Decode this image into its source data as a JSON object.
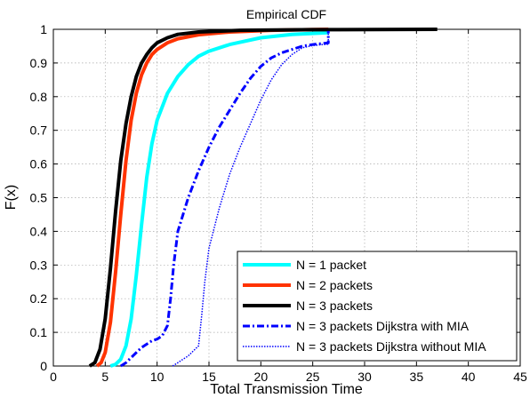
{
  "chart_data": {
    "type": "line",
    "title": "Empirical CDF",
    "xlabel": "Total Transmission Time",
    "ylabel": "F(x)",
    "xlim": [
      0,
      45
    ],
    "ylim": [
      0,
      1
    ],
    "xticks": [
      0,
      5,
      10,
      15,
      20,
      25,
      30,
      35,
      40,
      45
    ],
    "yticks": [
      0,
      0.1,
      0.2,
      0.3,
      0.4,
      0.5,
      0.6,
      0.7,
      0.8,
      0.9,
      1
    ],
    "grid": true,
    "legend_position": "bottom-right",
    "series": [
      {
        "name": "N = 1 packet",
        "color": "#00ffff",
        "style": "solid",
        "x": [
          5.5,
          6.0,
          6.5,
          7.0,
          7.5,
          8.0,
          8.5,
          9.0,
          9.5,
          10.0,
          11.0,
          12.0,
          13.0,
          14.0,
          15.0,
          17.0,
          20.0,
          23.0,
          26.5
        ],
        "y": [
          0,
          0.005,
          0.02,
          0.06,
          0.14,
          0.27,
          0.42,
          0.56,
          0.66,
          0.73,
          0.81,
          0.86,
          0.895,
          0.92,
          0.935,
          0.955,
          0.975,
          0.985,
          0.99
        ]
      },
      {
        "name": "N = 2 packets",
        "color": "#ff3300",
        "style": "solid",
        "x": [
          4.2,
          4.6,
          5.0,
          5.5,
          6.0,
          6.5,
          7.0,
          7.5,
          8.0,
          8.5,
          9.0,
          9.5,
          10.0,
          11.0,
          12.0,
          14.0,
          17.0,
          21.0,
          26.5
        ],
        "y": [
          0,
          0.01,
          0.04,
          0.13,
          0.28,
          0.45,
          0.61,
          0.73,
          0.81,
          0.865,
          0.9,
          0.925,
          0.94,
          0.96,
          0.972,
          0.984,
          0.992,
          0.997,
          1.0
        ]
      },
      {
        "name": "N = 3 packets",
        "color": "#000000",
        "style": "solid",
        "x": [
          3.5,
          4.0,
          4.5,
          5.0,
          5.5,
          6.0,
          6.5,
          7.0,
          7.5,
          8.0,
          8.5,
          9.0,
          9.5,
          10.0,
          11.0,
          12.0,
          14.0,
          18.0,
          25.0,
          37.0
        ],
        "y": [
          0,
          0.01,
          0.05,
          0.14,
          0.29,
          0.46,
          0.61,
          0.72,
          0.8,
          0.86,
          0.9,
          0.925,
          0.945,
          0.96,
          0.975,
          0.985,
          0.992,
          0.997,
          0.999,
          1.0
        ]
      },
      {
        "name": "N = 3 packets Dijkstra with MIA",
        "color": "#0000ff",
        "style": "dashdot",
        "x": [
          6.5,
          7.0,
          7.5,
          8.0,
          8.5,
          9.0,
          9.5,
          10.0,
          10.5,
          11.0,
          11.3,
          11.6,
          12.0,
          13.0,
          14.0,
          15.0,
          16.0,
          17.0,
          18.0,
          19.0,
          20.0,
          21.0,
          22.0,
          23.0,
          24.0,
          25.0,
          26.0,
          26.5,
          26.5
        ],
        "y": [
          0,
          0.01,
          0.025,
          0.04,
          0.055,
          0.065,
          0.075,
          0.08,
          0.09,
          0.12,
          0.2,
          0.3,
          0.4,
          0.5,
          0.58,
          0.65,
          0.71,
          0.76,
          0.81,
          0.855,
          0.89,
          0.915,
          0.93,
          0.94,
          0.95,
          0.955,
          0.958,
          0.96,
          0.995
        ]
      },
      {
        "name": "N = 3 packets Dijkstra without MIA",
        "color": "#0000ff",
        "style": "dotted",
        "x": [
          11.5,
          12.0,
          12.5,
          13.0,
          13.5,
          14.0,
          14.3,
          14.6,
          15.0,
          16.0,
          17.0,
          18.0,
          19.0,
          20.0,
          21.0,
          22.0,
          23.0,
          24.0,
          25.0,
          26.0,
          26.5,
          26.5
        ],
        "y": [
          0,
          0.01,
          0.02,
          0.03,
          0.045,
          0.06,
          0.15,
          0.25,
          0.35,
          0.47,
          0.57,
          0.65,
          0.72,
          0.79,
          0.85,
          0.895,
          0.925,
          0.945,
          0.952,
          0.955,
          0.956,
          0.99
        ]
      }
    ]
  }
}
